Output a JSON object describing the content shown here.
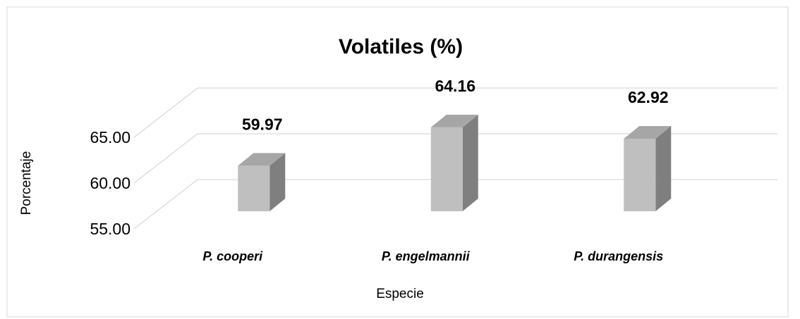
{
  "chart_data": {
    "type": "bar3d",
    "title": "Volatiles (%)",
    "x_label": "Especie",
    "y_label": "Porcentaje",
    "categories": [
      "P. cooperi",
      "P. engelmannii",
      "P. durangensis"
    ],
    "values": [
      59.97,
      64.16,
      62.92
    ],
    "color": "#bfbfbf",
    "ylim": [
      55,
      65
    ],
    "yticks": [
      {
        "value": 55,
        "label": "55.00"
      },
      {
        "value": 60,
        "label": "60.00"
      },
      {
        "value": 65,
        "label": "65.00"
      }
    ],
    "grid": true
  }
}
